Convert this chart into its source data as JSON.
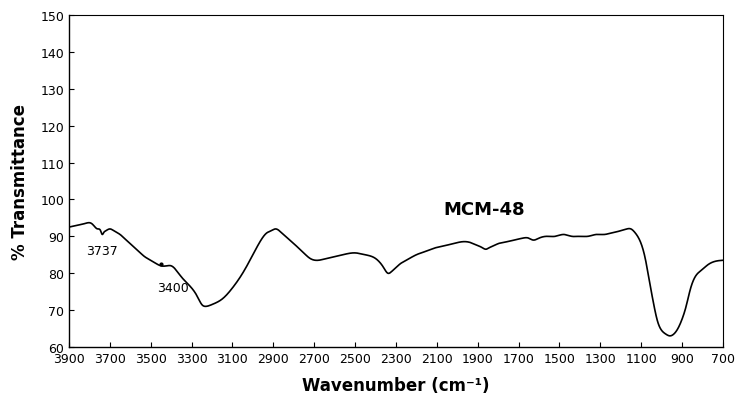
{
  "title": "",
  "xlabel": "Wavenumber (cm⁻¹)",
  "ylabel": "% Transmittance",
  "xlim": [
    3900,
    700
  ],
  "ylim": [
    60,
    150
  ],
  "yticks": [
    60,
    70,
    80,
    90,
    100,
    110,
    120,
    130,
    140,
    150
  ],
  "xticks": [
    3900,
    3700,
    3500,
    3300,
    3100,
    2900,
    2700,
    2500,
    2300,
    2100,
    1900,
    1700,
    1500,
    1300,
    1100,
    900,
    700
  ],
  "label_3737": "3737",
  "label_3400": "3400",
  "label_mcm48": "MCM-48",
  "line_color": "#000000",
  "background_color": "#ffffff"
}
